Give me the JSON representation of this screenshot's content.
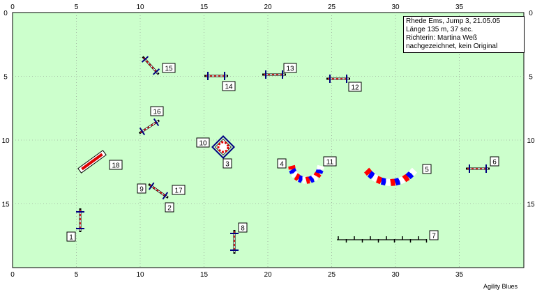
{
  "course": {
    "info_lines": [
      "Rhede Ems, Jump 3, 21.05.05",
      "Länge 135 m, 37 sec.",
      "Richterin: Martina Weß",
      "nachgezeichnet, kein Original"
    ],
    "footer": "Agility Blues"
  },
  "axes": {
    "x_ticks": [
      "0",
      "5",
      "10",
      "15",
      "20",
      "25",
      "30",
      "35"
    ],
    "y_ticks": [
      "0",
      "5",
      "10",
      "15"
    ],
    "x_range": [
      0,
      40
    ],
    "y_range": [
      0,
      20
    ]
  },
  "colors": {
    "field": "#ccffcc",
    "jump_red": "#dd0000",
    "jump_blue": "#000080",
    "tunnel_red": "#ff0000",
    "tunnel_blue": "#0000ff",
    "grid": "#99cc99"
  },
  "obstacles": [
    {
      "number": "1",
      "type": "jump",
      "center": [
        5.4,
        16.4
      ],
      "angle": 90
    },
    {
      "number": "2",
      "type": "jump",
      "center": [
        11.2,
        13.9
      ],
      "angle": 35
    },
    {
      "number": "3",
      "type": "tire",
      "center": [
        16.6,
        10.6
      ]
    },
    {
      "number": "4",
      "type": "tunnel",
      "center": [
        23.1,
        11.8
      ],
      "curve": "U"
    },
    {
      "number": "5",
      "type": "tunnel",
      "center": [
        29.8,
        11.4
      ],
      "curve": "U"
    },
    {
      "number": "6",
      "type": "jump",
      "center": [
        36.8,
        12.3
      ],
      "angle": 0
    },
    {
      "number": "7",
      "type": "weave",
      "center": [
        28.9,
        17.8
      ],
      "poles": 12
    },
    {
      "number": "8",
      "type": "jump",
      "center": [
        17.4,
        18.0
      ],
      "angle": 90
    },
    {
      "number": "9",
      "type": "jump",
      "center": [
        11.2,
        13.9
      ],
      "angle": 35
    },
    {
      "number": "10",
      "type": "tire",
      "center": [
        16.6,
        10.6
      ]
    },
    {
      "number": "11",
      "type": "tunnel",
      "center": [
        23.1,
        11.8
      ],
      "curve": "U"
    },
    {
      "number": "12",
      "type": "jump",
      "center": [
        25.9,
        5.1
      ],
      "angle": 0
    },
    {
      "number": "13",
      "type": "jump",
      "center": [
        20.8,
        4.8
      ],
      "angle": 0
    },
    {
      "number": "14",
      "type": "jump",
      "center": [
        16.0,
        4.9
      ],
      "angle": 0
    },
    {
      "number": "15",
      "type": "jump",
      "center": [
        11.0,
        4.3
      ],
      "angle": 42
    },
    {
      "number": "16",
      "type": "jump",
      "center": [
        10.9,
        9.0
      ],
      "angle": -33
    },
    {
      "number": "17",
      "type": "jump",
      "center": [
        11.2,
        13.9
      ],
      "angle": 35
    },
    {
      "number": "18",
      "type": "long_jump",
      "center": [
        6.5,
        11.7
      ],
      "angle": -36
    }
  ]
}
